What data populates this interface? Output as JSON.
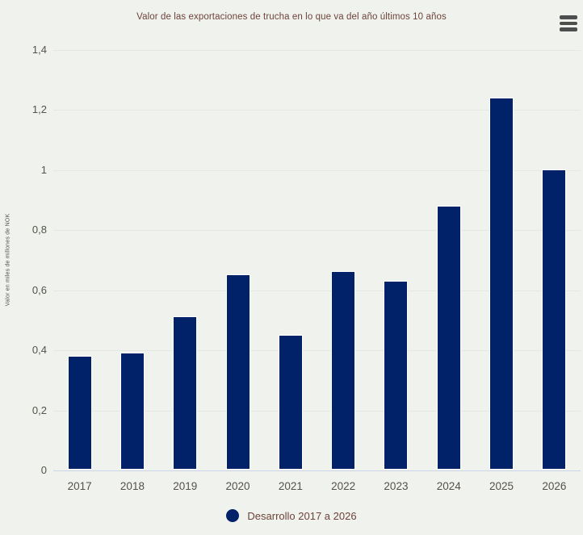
{
  "header": {
    "title": "Valor de las exportaciones de trucha en lo que va del año últimos 10 años"
  },
  "toolbar": {
    "context_menu_icon": "hamburger-menu-icon"
  },
  "colors": {
    "bar": "#012169",
    "background": "#f0f2ee",
    "gridline": "#e4e7e2",
    "axis_line": "#ccd5e8",
    "title_text": "#6d4339",
    "legend_text": "#6d4339",
    "axis_text": "#55514c",
    "menu_icon": "#4e4e4e"
  },
  "chart_data": {
    "type": "bar",
    "title": "Valor de las exportaciones de trucha en lo que va del año últimos 10 años",
    "categories": [
      "2017",
      "2018",
      "2019",
      "2020",
      "2021",
      "2022",
      "2023",
      "2024",
      "2025",
      "2026"
    ],
    "values": [
      0.38,
      0.39,
      0.51,
      0.65,
      0.45,
      0.66,
      0.63,
      0.88,
      1.24,
      1.0
    ],
    "series_name": "Desarrollo 2017 a 2026",
    "xlabel": "",
    "ylabel": "Valor en miles de millones de NOK",
    "ylim": [
      0,
      1.4
    ],
    "ytick_step": 0.2,
    "ytick_labels": [
      "0",
      "0,2",
      "0,4",
      "0,6",
      "0,8",
      "1",
      "1,2",
      "1,4"
    ],
    "grid": true,
    "legend_position": "bottom-center"
  },
  "legend": {
    "label": "Desarrollo 2017 a 2026"
  }
}
